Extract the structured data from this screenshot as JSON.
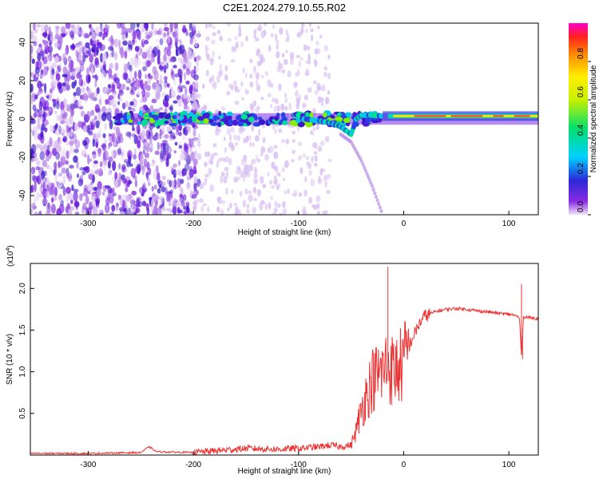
{
  "figure": {
    "title": "C2E1.2024.279.10.55.R02"
  },
  "chart_data": [
    {
      "type": "heatmap",
      "title": "C2E1.2024.279.10.55.R02",
      "xlabel": "Height of straight line (km)",
      "ylabel": "Frequency (Hz)",
      "xlim": [
        -355,
        128
      ],
      "ylim": [
        -50,
        50
      ],
      "xticks": [
        -300,
        -200,
        -100,
        0,
        100
      ],
      "yticks": [
        -40,
        -20,
        0,
        20,
        40
      ],
      "colorbar": {
        "label": "Normalized spectral amplitude",
        "range": [
          0,
          1
        ],
        "ticks": [
          0.0,
          0.2,
          0.4,
          0.6,
          0.8
        ]
      },
      "features": {
        "main_line_frequency": 0,
        "strong_segment_x": [
          -20,
          128
        ],
        "strong_segment_frequency": 1.5,
        "dispersive_branch": [
          [
            -60,
            -8
          ],
          [
            -50,
            -12
          ],
          [
            -40,
            -22
          ],
          [
            -30,
            -35
          ],
          [
            -20,
            -50
          ]
        ],
        "dispersive_curve": [
          [
            -95,
            0
          ],
          [
            -80,
            -1
          ],
          [
            -70,
            -2
          ],
          [
            -60,
            -4
          ],
          [
            -55,
            -6
          ],
          [
            -50,
            -8
          ],
          [
            -45,
            0
          ],
          [
            -40,
            2
          ],
          [
            -30,
            2
          ],
          [
            -20,
            1.5
          ]
        ]
      }
    },
    {
      "type": "line",
      "xlabel": "Height of straight line (km)",
      "ylabel": "SNR (10 * v/v)",
      "y_exponent_label": "(x10",
      "y_exponent": "4",
      "y_exponent_close": ")",
      "xlim": [
        -355,
        128
      ],
      "ylim": [
        0,
        2.3
      ],
      "xticks": [
        -300,
        -200,
        -100,
        0,
        100
      ],
      "yticks": [
        0.5,
        1.0,
        1.5,
        2.0
      ],
      "series": [
        {
          "color": "#ee3333",
          "x": [
            -355,
            -300,
            -250,
            -242,
            -235,
            -200,
            -180,
            -150,
            -120,
            -100,
            -80,
            -70,
            -60,
            -50,
            -45,
            -40,
            -35,
            -30,
            -25,
            -20,
            -15,
            -10,
            -5,
            0,
            5,
            10,
            15,
            20,
            30,
            40,
            50,
            60,
            70,
            80,
            90,
            100,
            105,
            110,
            112,
            114,
            120,
            128
          ],
          "y": [
            0.02,
            0.02,
            0.03,
            0.1,
            0.04,
            0.03,
            0.05,
            0.08,
            0.07,
            0.08,
            0.1,
            0.12,
            0.1,
            0.12,
            0.3,
            0.55,
            0.75,
            0.9,
            0.95,
            1.0,
            1.1,
            1.0,
            1.05,
            1.1,
            1.3,
            1.45,
            1.58,
            1.67,
            1.72,
            1.75,
            1.76,
            1.75,
            1.73,
            1.72,
            1.7,
            1.69,
            1.68,
            1.65,
            1.2,
            1.66,
            1.65,
            1.64
          ]
        }
      ],
      "spikes": [
        [
          -15,
          2.26
        ],
        [
          112,
          2.05
        ],
        [
          113,
          1.15
        ]
      ]
    }
  ]
}
